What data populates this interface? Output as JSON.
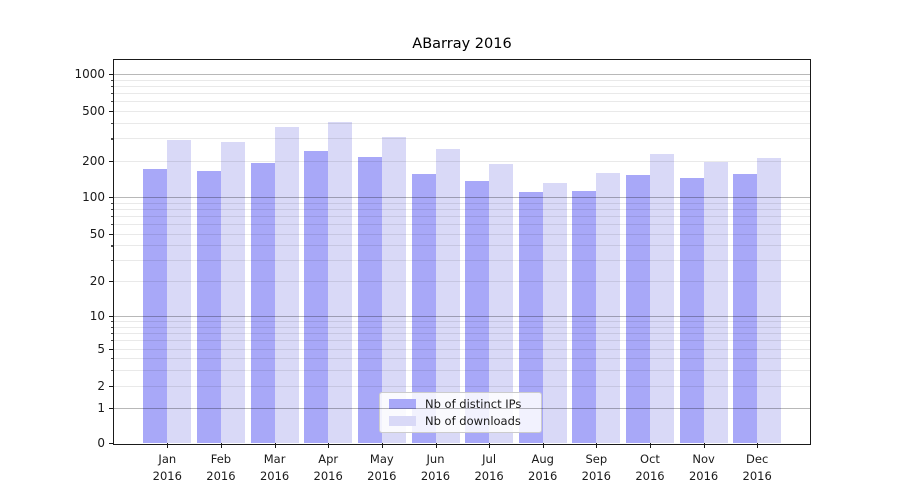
{
  "chart_data": {
    "type": "bar",
    "title": "ABarray 2016",
    "xlabel": "",
    "ylabel": "",
    "categories": [
      {
        "month": "Jan",
        "year": "2016"
      },
      {
        "month": "Feb",
        "year": "2016"
      },
      {
        "month": "Mar",
        "year": "2016"
      },
      {
        "month": "Apr",
        "year": "2016"
      },
      {
        "month": "May",
        "year": "2016"
      },
      {
        "month": "Jun",
        "year": "2016"
      },
      {
        "month": "Jul",
        "year": "2016"
      },
      {
        "month": "Aug",
        "year": "2016"
      },
      {
        "month": "Sep",
        "year": "2016"
      },
      {
        "month": "Oct",
        "year": "2016"
      },
      {
        "month": "Nov",
        "year": "2016"
      },
      {
        "month": "Dec",
        "year": "2016"
      }
    ],
    "series": [
      {
        "name": "Nb of distinct IPs",
        "color": "#a8a8f8",
        "values": [
          170,
          165,
          190,
          240,
          215,
          155,
          135,
          110,
          112,
          152,
          143,
          155
        ]
      },
      {
        "name": "Nb of downloads",
        "color": "#d9d9f7",
        "values": [
          290,
          280,
          370,
          405,
          310,
          245,
          188,
          130,
          158,
          225,
          195,
          210
        ]
      }
    ],
    "y_axis": {
      "scale": "log-with-zero",
      "ticks": [
        0,
        1,
        2,
        5,
        10,
        20,
        50,
        100,
        200,
        500,
        1000
      ],
      "range": [
        0,
        1000
      ],
      "grid_major_at": [
        1,
        10,
        100,
        1000
      ]
    },
    "legend": {
      "position": "inside-bottom-center",
      "grid_drawn_over_bars_and_legend": true
    }
  }
}
